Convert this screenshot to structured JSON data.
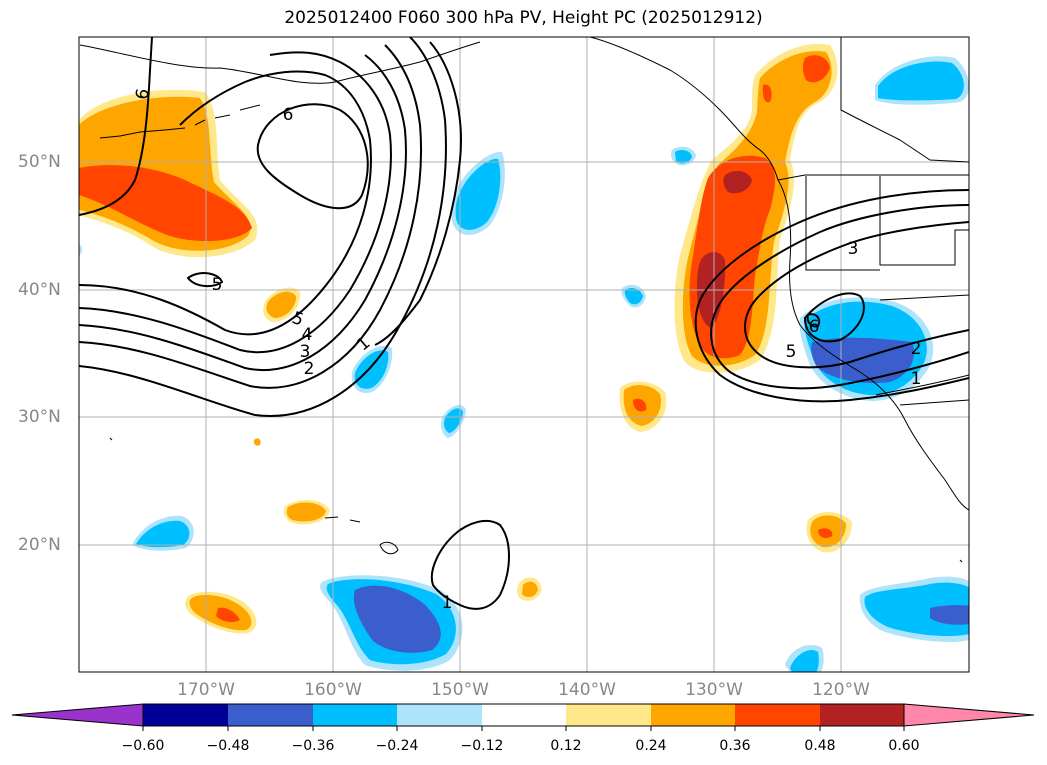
{
  "title": "2025012400 F060 300 hPa PV, Height PC (2025012912)",
  "lat_labels": [
    "50°N",
    "40°N",
    "30°N",
    "20°N"
  ],
  "lon_labels": [
    "170°W",
    "160°W",
    "150°W",
    "140°W",
    "130°W",
    "120°W"
  ],
  "colorbar": {
    "ticks": [
      "−0.60",
      "−0.48",
      "−0.36",
      "−0.24",
      "−0.12",
      "0.12",
      "0.24",
      "0.36",
      "0.48",
      "0.60"
    ],
    "colors": [
      "#9933cc",
      "#000099",
      "#3a5fcd",
      "#00bfff",
      "#ade3fb",
      "#ffffff",
      "#ffe88a",
      "#ffa500",
      "#ff4500",
      "#b22222",
      "#ff88aa"
    ]
  },
  "contour_labels": [
    "6",
    "6",
    "5",
    "5",
    "4",
    "3",
    "2",
    "1",
    "1",
    "3",
    "5",
    "2",
    "1",
    "6"
  ],
  "map_info": {
    "domain": {
      "lon": [
        -180,
        -110
      ],
      "lat": [
        10,
        60
      ]
    },
    "grid": true,
    "ocean_color": "#ffffff",
    "gridline_color": "#b0b0b0"
  }
}
